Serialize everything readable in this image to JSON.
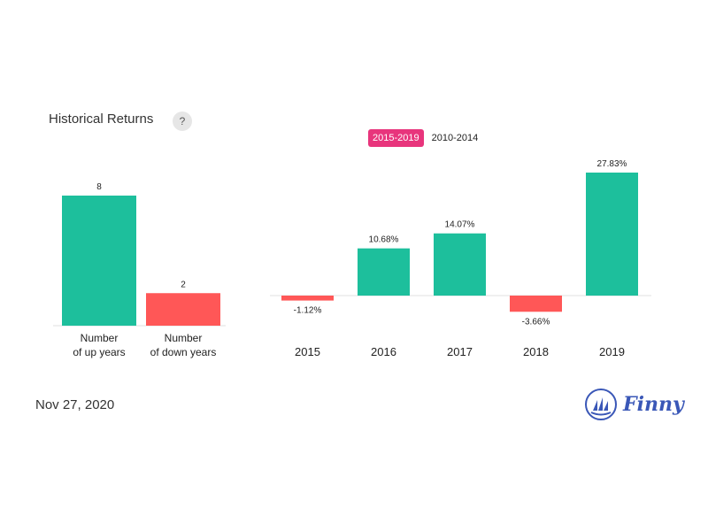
{
  "header": {
    "title": "Historical Returns",
    "help_label": "?"
  },
  "tabs": [
    {
      "label": "2015-2019",
      "active": true
    },
    {
      "label": "2010-2014",
      "active": false
    }
  ],
  "footer": {
    "date": "Nov 27, 2020",
    "brand": "Finny"
  },
  "colors": {
    "positive": "#1dbf9c",
    "negative": "#ff5757",
    "accent": "#e8357c",
    "brand": "#3a57b7"
  },
  "chart_data": [
    {
      "type": "bar",
      "categories": [
        "Number\nof up years",
        "Number\nof down years"
      ],
      "values": [
        8,
        2
      ],
      "data_labels": [
        "8",
        "2"
      ]
    },
    {
      "type": "bar",
      "categories": [
        "2015",
        "2016",
        "2017",
        "2018",
        "2019"
      ],
      "values": [
        -1.12,
        10.68,
        14.07,
        -3.66,
        27.83
      ],
      "data_labels": [
        "-1.12%",
        "10.68%",
        "14.07%",
        "-3.66%",
        "27.83%"
      ]
    }
  ]
}
